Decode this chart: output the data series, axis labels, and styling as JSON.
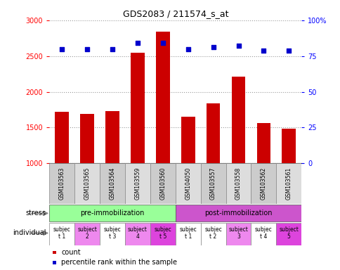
{
  "title": "GDS2083 / 211574_s_at",
  "samples": [
    "GSM103563",
    "GSM103565",
    "GSM103564",
    "GSM103559",
    "GSM103560",
    "GSM104050",
    "GSM103557",
    "GSM103558",
    "GSM103562",
    "GSM103561"
  ],
  "counts": [
    1720,
    1690,
    1730,
    2550,
    2840,
    1650,
    1840,
    2210,
    1560,
    1480
  ],
  "percentile_ranks": [
    80,
    80,
    80,
    84,
    84,
    80,
    81,
    82,
    79,
    79
  ],
  "ylim_left": [
    1000,
    3000
  ],
  "ylim_right": [
    0,
    100
  ],
  "yticks_left": [
    1000,
    1500,
    2000,
    2500,
    3000
  ],
  "yticks_right": [
    0,
    25,
    50,
    75,
    100
  ],
  "ytick_right_labels": [
    "0",
    "25",
    "50",
    "75",
    "100%"
  ],
  "bar_color": "#cc0000",
  "dot_color": "#0000cc",
  "stress_groups": [
    {
      "label": "pre-immobilization",
      "start": 0,
      "end": 5,
      "color": "#99ff99"
    },
    {
      "label": "post-immobilization",
      "start": 5,
      "end": 10,
      "color": "#cc55cc"
    }
  ],
  "individuals": [
    {
      "label": "subjec\nt 1",
      "idx": 0,
      "color": "#ffffff"
    },
    {
      "label": "subject\n2",
      "idx": 1,
      "color": "#ee88ee"
    },
    {
      "label": "subjec\nt 3",
      "idx": 2,
      "color": "#ffffff"
    },
    {
      "label": "subject\n4",
      "idx": 3,
      "color": "#ee88ee"
    },
    {
      "label": "subjec\nt 5",
      "idx": 4,
      "color": "#dd44dd"
    },
    {
      "label": "subjec\nt 1",
      "idx": 5,
      "color": "#ffffff"
    },
    {
      "label": "subjec\nt 2",
      "idx": 6,
      "color": "#ffffff"
    },
    {
      "label": "subject\n3",
      "idx": 7,
      "color": "#ee88ee"
    },
    {
      "label": "subjec\nt 4",
      "idx": 8,
      "color": "#ffffff"
    },
    {
      "label": "subject\n5",
      "idx": 9,
      "color": "#dd44dd"
    }
  ],
  "stress_label": "stress",
  "individual_label": "individual",
  "legend_count_label": "count",
  "legend_pct_label": "percentile rank within the sample",
  "bar_width": 0.55,
  "tick_label_fontsize": 7,
  "sample_fontsize": 5.5,
  "stress_fontsize": 7,
  "ind_fontsize": 5.5
}
